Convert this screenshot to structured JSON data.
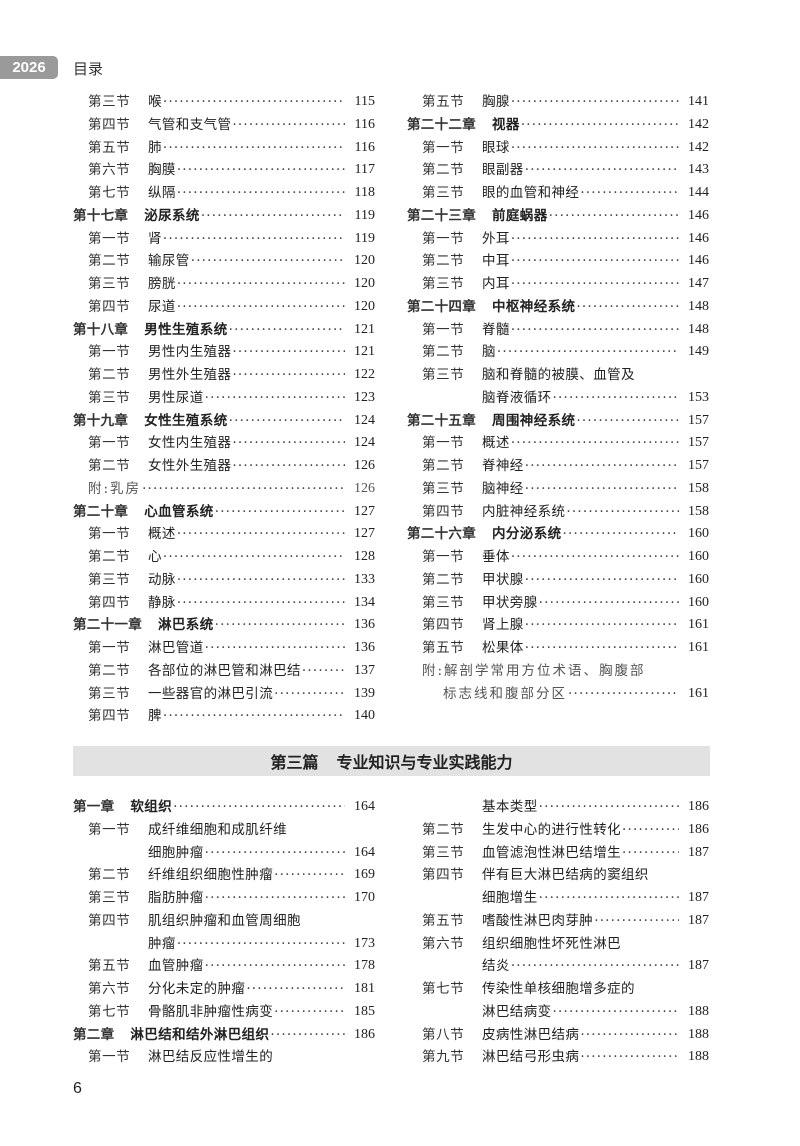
{
  "header": {
    "year": "2026",
    "title": "目录"
  },
  "part_banner": {
    "label": "第三篇",
    "title": "专业知识与专业实践能力"
  },
  "page_number": "6",
  "toc_top_left": [
    {
      "type": "section",
      "label": "第三节",
      "title": "喉",
      "page": "115"
    },
    {
      "type": "section",
      "label": "第四节",
      "title": "气管和支气管",
      "page": "116"
    },
    {
      "type": "section",
      "label": "第五节",
      "title": "肺",
      "page": "116"
    },
    {
      "type": "section",
      "label": "第六节",
      "title": "胸膜",
      "page": "117"
    },
    {
      "type": "section",
      "label": "第七节",
      "title": "纵隔",
      "page": "118"
    },
    {
      "type": "chapter",
      "label": "第十七章",
      "title": "泌尿系统",
      "page": "119"
    },
    {
      "type": "section",
      "label": "第一节",
      "title": "肾",
      "page": "119"
    },
    {
      "type": "section",
      "label": "第二节",
      "title": "输尿管",
      "page": "120"
    },
    {
      "type": "section",
      "label": "第三节",
      "title": "膀胱",
      "page": "120"
    },
    {
      "type": "section",
      "label": "第四节",
      "title": "尿道",
      "page": "120"
    },
    {
      "type": "chapter",
      "label": "第十八章",
      "title": "男性生殖系统",
      "page": "121"
    },
    {
      "type": "section",
      "label": "第一节",
      "title": "男性内生殖器",
      "page": "121"
    },
    {
      "type": "section",
      "label": "第二节",
      "title": "男性外生殖器",
      "page": "122"
    },
    {
      "type": "section",
      "label": "第三节",
      "title": "男性尿道",
      "page": "123"
    },
    {
      "type": "chapter",
      "label": "第十九章",
      "title": "女性生殖系统",
      "page": "124"
    },
    {
      "type": "section",
      "label": "第一节",
      "title": "女性内生殖器",
      "page": "124"
    },
    {
      "type": "section",
      "label": "第二节",
      "title": "女性外生殖器",
      "page": "126"
    },
    {
      "type": "appendix",
      "label": "",
      "title": "附:乳房",
      "page": "126"
    },
    {
      "type": "chapter",
      "label": "第二十章",
      "title": "心血管系统",
      "page": "127"
    },
    {
      "type": "section",
      "label": "第一节",
      "title": "概述",
      "page": "127"
    },
    {
      "type": "section",
      "label": "第二节",
      "title": "心",
      "page": "128"
    },
    {
      "type": "section",
      "label": "第三节",
      "title": "动脉",
      "page": "133"
    },
    {
      "type": "section",
      "label": "第四节",
      "title": "静脉",
      "page": "134"
    },
    {
      "type": "chapter",
      "label": "第二十一章",
      "title": "淋巴系统",
      "page": "136"
    },
    {
      "type": "section",
      "label": "第一节",
      "title": "淋巴管道",
      "page": "136"
    },
    {
      "type": "section",
      "label": "第二节",
      "title": "各部位的淋巴管和淋巴结",
      "page": "137"
    },
    {
      "type": "section",
      "label": "第三节",
      "title": "一些器官的淋巴引流",
      "page": "139"
    },
    {
      "type": "section",
      "label": "第四节",
      "title": "脾",
      "page": "140"
    }
  ],
  "toc_top_right": [
    {
      "type": "section",
      "label": "第五节",
      "title": "胸腺",
      "page": "141"
    },
    {
      "type": "chapter",
      "label": "第二十二章",
      "title": "视器",
      "page": "142"
    },
    {
      "type": "section",
      "label": "第一节",
      "title": "眼球",
      "page": "142"
    },
    {
      "type": "section",
      "label": "第二节",
      "title": "眼副器",
      "page": "143"
    },
    {
      "type": "section",
      "label": "第三节",
      "title": "眼的血管和神经",
      "page": "144"
    },
    {
      "type": "chapter",
      "label": "第二十三章",
      "title": "前庭蜗器",
      "page": "146"
    },
    {
      "type": "section",
      "label": "第一节",
      "title": "外耳",
      "page": "146"
    },
    {
      "type": "section",
      "label": "第二节",
      "title": "中耳",
      "page": "146"
    },
    {
      "type": "section",
      "label": "第三节",
      "title": "内耳",
      "page": "147"
    },
    {
      "type": "chapter",
      "label": "第二十四章",
      "title": "中枢神经系统",
      "page": "148"
    },
    {
      "type": "section",
      "label": "第一节",
      "title": "脊髓",
      "page": "148"
    },
    {
      "type": "section",
      "label": "第二节",
      "title": "脑",
      "page": "149"
    },
    {
      "type": "section",
      "label": "第三节",
      "title": "脑和脊髓的被膜、血管及",
      "page": ""
    },
    {
      "type": "cont",
      "label": "",
      "title": "脑脊液循环",
      "page": "153"
    },
    {
      "type": "chapter",
      "label": "第二十五章",
      "title": "周围神经系统",
      "page": "157"
    },
    {
      "type": "section",
      "label": "第一节",
      "title": "概述",
      "page": "157"
    },
    {
      "type": "section",
      "label": "第二节",
      "title": "脊神经",
      "page": "157"
    },
    {
      "type": "section",
      "label": "第三节",
      "title": "脑神经",
      "page": "158"
    },
    {
      "type": "section",
      "label": "第四节",
      "title": "内脏神经系统",
      "page": "158"
    },
    {
      "type": "chapter",
      "label": "第二十六章",
      "title": "内分泌系统",
      "page": "160"
    },
    {
      "type": "section",
      "label": "第一节",
      "title": "垂体",
      "page": "160"
    },
    {
      "type": "section",
      "label": "第二节",
      "title": "甲状腺",
      "page": "160"
    },
    {
      "type": "section",
      "label": "第三节",
      "title": "甲状旁腺",
      "page": "160"
    },
    {
      "type": "section",
      "label": "第四节",
      "title": "肾上腺",
      "page": "161"
    },
    {
      "type": "section",
      "label": "第五节",
      "title": "松果体",
      "page": "161"
    },
    {
      "type": "appendix",
      "label": "",
      "title": "附:解剖学常用方位术语、胸腹部",
      "page": ""
    },
    {
      "type": "appendix-cont",
      "label": "",
      "title": "标志线和腹部分区",
      "page": "161"
    }
  ],
  "toc_bottom_left": [
    {
      "type": "chapter",
      "label": "第一章",
      "title": "软组织",
      "page": "164"
    },
    {
      "type": "section",
      "label": "第一节",
      "title": "成纤维细胞和成肌纤维",
      "page": ""
    },
    {
      "type": "cont",
      "label": "",
      "title": "细胞肿瘤",
      "page": "164"
    },
    {
      "type": "section",
      "label": "第二节",
      "title": "纤维组织细胞性肿瘤",
      "page": "169"
    },
    {
      "type": "section",
      "label": "第三节",
      "title": "脂肪肿瘤",
      "page": "170"
    },
    {
      "type": "section",
      "label": "第四节",
      "title": "肌组织肿瘤和血管周细胞",
      "page": ""
    },
    {
      "type": "cont",
      "label": "",
      "title": "肿瘤",
      "page": "173"
    },
    {
      "type": "section",
      "label": "第五节",
      "title": "血管肿瘤",
      "page": "178"
    },
    {
      "type": "section",
      "label": "第六节",
      "title": "分化未定的肿瘤",
      "page": "181"
    },
    {
      "type": "section",
      "label": "第七节",
      "title": "骨骼肌非肿瘤性病变",
      "page": "185"
    },
    {
      "type": "chapter",
      "label": "第二章",
      "title": "淋巴结和结外淋巴组织",
      "page": "186"
    },
    {
      "type": "section",
      "label": "第一节",
      "title": "淋巴结反应性增生的",
      "page": ""
    }
  ],
  "toc_bottom_right": [
    {
      "type": "cont",
      "label": "",
      "title": "基本类型",
      "page": "186"
    },
    {
      "type": "section",
      "label": "第二节",
      "title": "生发中心的进行性转化",
      "page": "186"
    },
    {
      "type": "section",
      "label": "第三节",
      "title": "血管滤泡性淋巴结增生",
      "page": "187"
    },
    {
      "type": "section",
      "label": "第四节",
      "title": "伴有巨大淋巴结病的窦组织",
      "page": ""
    },
    {
      "type": "cont",
      "label": "",
      "title": "细胞增生",
      "page": "187"
    },
    {
      "type": "section",
      "label": "第五节",
      "title": "嗜酸性淋巴肉芽肿",
      "page": "187"
    },
    {
      "type": "section",
      "label": "第六节",
      "title": "组织细胞性坏死性淋巴",
      "page": ""
    },
    {
      "type": "cont",
      "label": "",
      "title": "结炎",
      "page": "187"
    },
    {
      "type": "section",
      "label": "第七节",
      "title": "传染性单核细胞增多症的",
      "page": ""
    },
    {
      "type": "cont",
      "label": "",
      "title": "淋巴结病变",
      "page": "188"
    },
    {
      "type": "section",
      "label": "第八节",
      "title": "皮病性淋巴结病",
      "page": "188"
    },
    {
      "type": "section",
      "label": "第九节",
      "title": "淋巴结弓形虫病",
      "page": "188"
    }
  ]
}
